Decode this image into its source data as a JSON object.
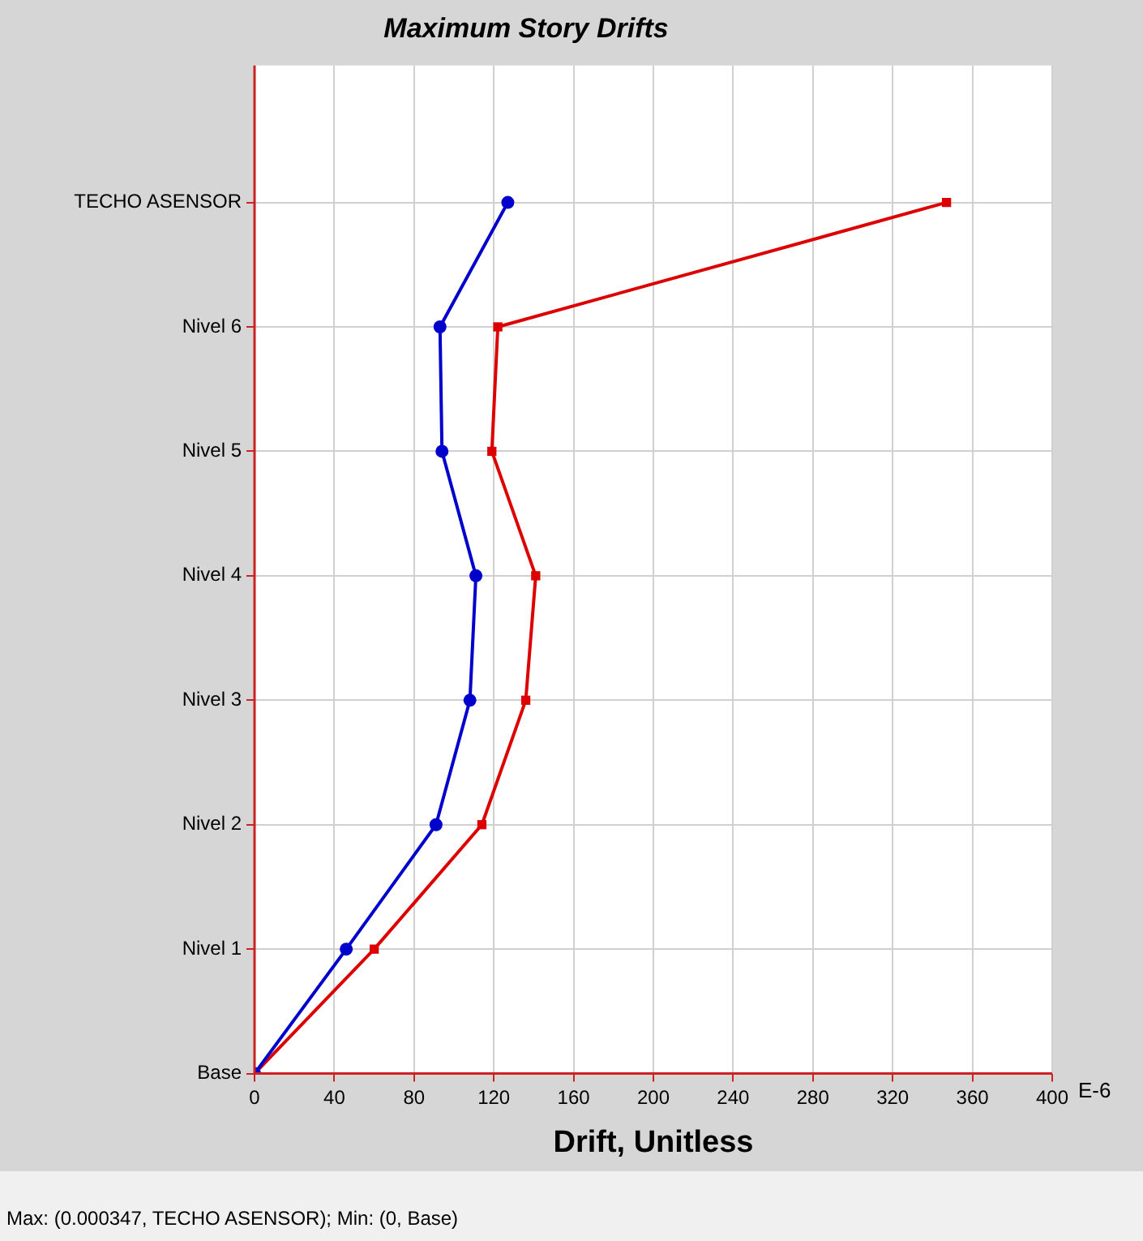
{
  "chart_data": {
    "type": "line",
    "title": "Maximum Story Drifts",
    "xlabel": "Drift, Unitless",
    "categories": [
      "TECHO ASENSOR",
      "Nivel 6",
      "Nivel 5",
      "Nivel 4",
      "Nivel 3",
      "Nivel 2",
      "Nivel 1",
      "Base"
    ],
    "orientation": "horizontal",
    "series": [
      {
        "color": "#0000cc",
        "marker": "circle",
        "values": [
          127,
          93,
          94,
          111,
          108,
          91,
          46,
          0
        ]
      },
      {
        "color": "#dd0000",
        "marker": "square",
        "values": [
          347,
          122,
          119,
          141,
          136,
          114,
          60,
          0
        ]
      }
    ],
    "xlim": [
      0,
      400
    ],
    "xticks": [
      0,
      40,
      80,
      120,
      160,
      200,
      240,
      280,
      320,
      360,
      400
    ],
    "grid": true,
    "legend": false,
    "annotations": [
      "E-6",
      "Max: (0.000347, TECHO ASENSOR);   Min: (0, Base)"
    ]
  }
}
